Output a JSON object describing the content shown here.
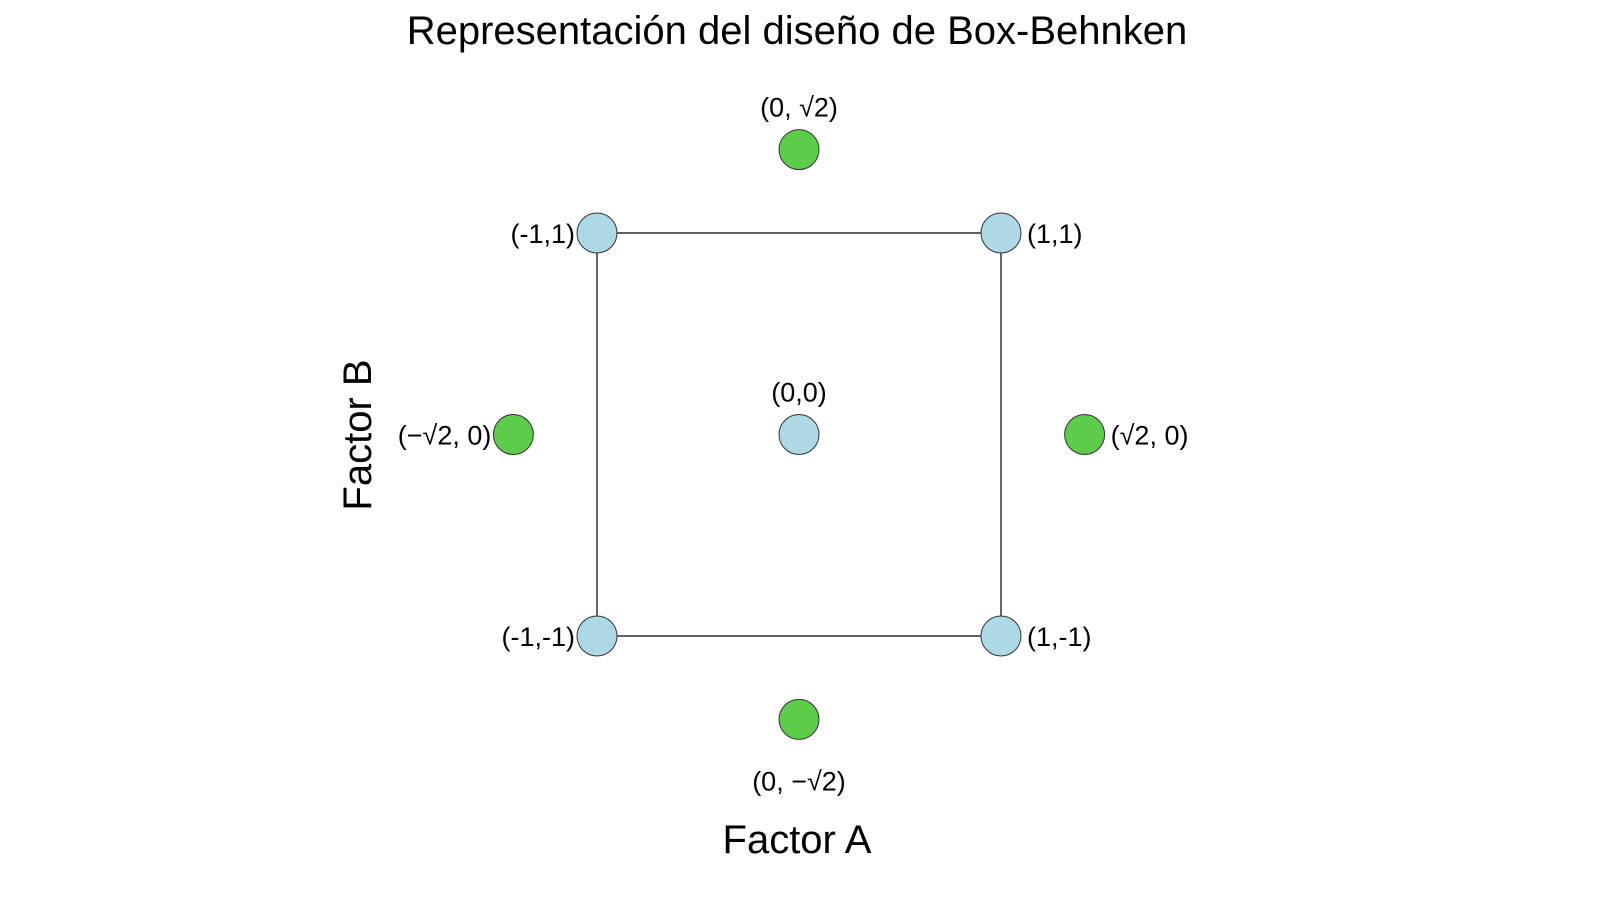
{
  "chart_data": {
    "type": "scatter",
    "title": "Representación del diseño de Box-Behnken",
    "xlabel": "Factor A",
    "ylabel": "Factor B",
    "xlim": [
      -1.6,
      1.6
    ],
    "ylim": [
      -1.6,
      1.6
    ],
    "grid": false,
    "axes_visible": false,
    "colors": {
      "factorial": "#add8e6",
      "axial": "#5ccc4a"
    },
    "square_edges": [
      {
        "from": [
          -1,
          1
        ],
        "to": [
          1,
          1
        ]
      },
      {
        "from": [
          1,
          1
        ],
        "to": [
          1,
          -1
        ]
      },
      {
        "from": [
          1,
          -1
        ],
        "to": [
          -1,
          -1
        ]
      },
      {
        "from": [
          -1,
          -1
        ],
        "to": [
          -1,
          1
        ]
      }
    ],
    "points": [
      {
        "x": -1,
        "y": 1,
        "group": "factorial",
        "label": "(-1,1)",
        "label_pos": "left"
      },
      {
        "x": 1,
        "y": 1,
        "group": "factorial",
        "label": "(1,1)",
        "label_pos": "right"
      },
      {
        "x": -1,
        "y": -1,
        "group": "factorial",
        "label": "(-1,-1)",
        "label_pos": "left"
      },
      {
        "x": 1,
        "y": -1,
        "group": "factorial",
        "label": "(1,-1)",
        "label_pos": "right"
      },
      {
        "x": 0,
        "y": 0,
        "group": "factorial",
        "label": "(0,0)",
        "label_pos": "top"
      },
      {
        "x": 0,
        "y": 1.414,
        "group": "axial",
        "label": "(0, √2)",
        "label_pos": "top"
      },
      {
        "x": 0,
        "y": -1.414,
        "group": "axial",
        "label": "(0, −√2)",
        "label_pos": "bottom"
      },
      {
        "x": -1.414,
        "y": 0,
        "group": "axial",
        "label": "(−√2, 0)",
        "label_pos": "left"
      },
      {
        "x": 1.414,
        "y": 0,
        "group": "axial",
        "label": "(√2, 0)",
        "label_pos": "right"
      }
    ]
  }
}
